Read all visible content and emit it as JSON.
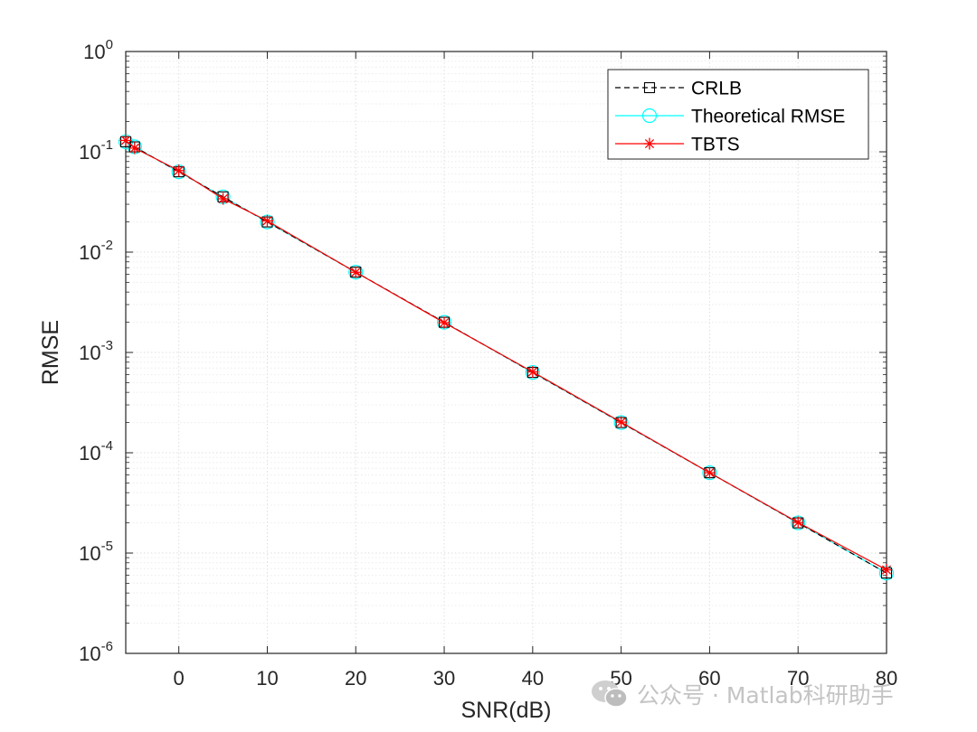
{
  "chart_data": {
    "type": "line",
    "xlabel": "SNR(dB)",
    "ylabel": "RMSE",
    "yscale": "log",
    "xlim": [
      -6,
      80
    ],
    "ylim": [
      1e-06,
      1
    ],
    "xticks": [
      0,
      10,
      20,
      30,
      40,
      50,
      60,
      70,
      80
    ],
    "yticks": [
      {
        "value": 1e-06,
        "base": "10",
        "exp": "-6"
      },
      {
        "value": 1e-05,
        "base": "10",
        "exp": "-5"
      },
      {
        "value": 0.0001,
        "base": "10",
        "exp": "-4"
      },
      {
        "value": 0.001,
        "base": "10",
        "exp": "-3"
      },
      {
        "value": 0.01,
        "base": "10",
        "exp": "-2"
      },
      {
        "value": 0.1,
        "base": "10",
        "exp": "-1"
      },
      {
        "value": 1,
        "base": "10",
        "exp": "0"
      }
    ],
    "grid": true,
    "minor_grid": true,
    "legend_position": "top-right",
    "series": [
      {
        "name": "CRLB",
        "color": "#000000",
        "line": "dashed",
        "marker": "square",
        "x": [
          -6,
          -5,
          0,
          5,
          10,
          20,
          30,
          40,
          50,
          60,
          70,
          80
        ],
        "y": [
          0.126,
          0.112,
          0.0632,
          0.0356,
          0.02,
          0.00632,
          0.002,
          0.000632,
          0.0002,
          6.32e-05,
          2e-05,
          6.32e-06
        ]
      },
      {
        "name": "Theoretical RMSE",
        "color": "#00ffff",
        "line": "solid",
        "marker": "circle",
        "x": [
          -6,
          -5,
          0,
          5,
          10,
          20,
          30,
          40,
          50,
          60,
          70,
          80
        ],
        "y": [
          0.126,
          0.112,
          0.0632,
          0.0356,
          0.02,
          0.00632,
          0.002,
          0.000632,
          0.0002,
          6.32e-05,
          2e-05,
          6.32e-06
        ]
      },
      {
        "name": "TBTS",
        "color": "#ff0000",
        "line": "solid",
        "marker": "asterisk",
        "x": [
          -6,
          -5,
          0,
          5,
          10,
          20,
          30,
          40,
          50,
          60,
          70,
          80
        ],
        "y": [
          0.13,
          0.109,
          0.065,
          0.034,
          0.0205,
          0.0063,
          0.00198,
          0.00064,
          0.000202,
          6.32e-05,
          2.02e-05,
          6.8e-06
        ]
      }
    ]
  },
  "watermark": {
    "text": "公众号 · Matlab科研助手",
    "icon": "wechat-icon"
  }
}
